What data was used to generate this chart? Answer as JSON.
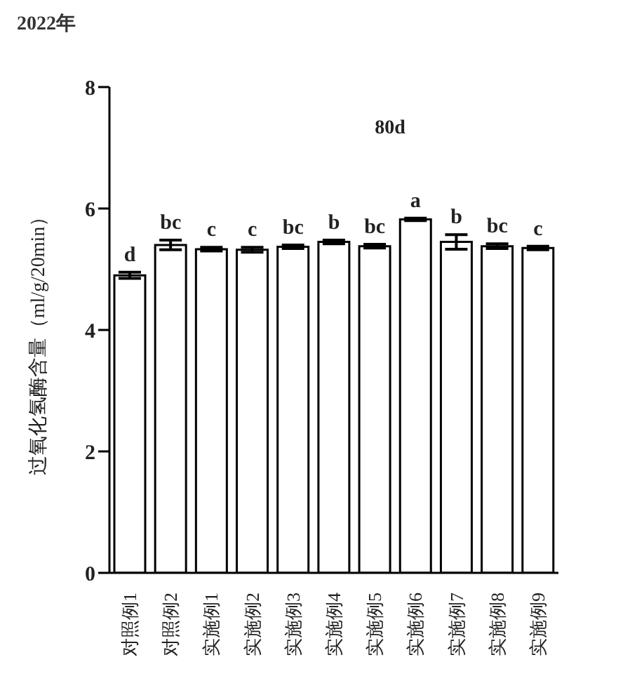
{
  "chart_data": {
    "type": "bar",
    "title": "2022年",
    "ylabel": "过氧化氢酶含量（ml/g/20min）",
    "categories": [
      "对照例1",
      "对照例2",
      "实施例1",
      "实施例2",
      "实施例3",
      "实施例4",
      "实施例5",
      "实施例6",
      "实施例7",
      "实施例8",
      "实施例9"
    ],
    "values": [
      4.9,
      5.4,
      5.33,
      5.32,
      5.37,
      5.45,
      5.38,
      5.82,
      5.45,
      5.38,
      5.35
    ],
    "errors": [
      0.05,
      0.08,
      0.03,
      0.04,
      0.03,
      0.03,
      0.03,
      0.02,
      0.12,
      0.04,
      0.03
    ],
    "color": "#ffffff",
    "ylim": [
      0,
      8
    ],
    "yticks": [
      0,
      2,
      4,
      6,
      8
    ],
    "grid": false,
    "legend": false,
    "annotations": [
      "80d",
      {
        "text": "d",
        "x": "对照例1",
        "y": 4.95
      },
      {
        "text": "bc",
        "x": "对照例2",
        "y": 5.48
      },
      {
        "text": "c",
        "x": "实施例1",
        "y": 5.36
      },
      {
        "text": "c",
        "x": "实施例2",
        "y": 5.36
      },
      {
        "text": "bc",
        "x": "实施例3",
        "y": 5.4
      },
      {
        "text": "b",
        "x": "实施例4",
        "y": 5.48
      },
      {
        "text": "bc",
        "x": "实施例5",
        "y": 5.41
      },
      {
        "text": "a",
        "x": "实施例6",
        "y": 5.84
      },
      {
        "text": "b",
        "x": "实施例7",
        "y": 5.57
      },
      {
        "text": "bc",
        "x": "实施例8",
        "y": 5.42
      },
      {
        "text": "c",
        "x": "实施例9",
        "y": 5.38
      }
    ]
  }
}
